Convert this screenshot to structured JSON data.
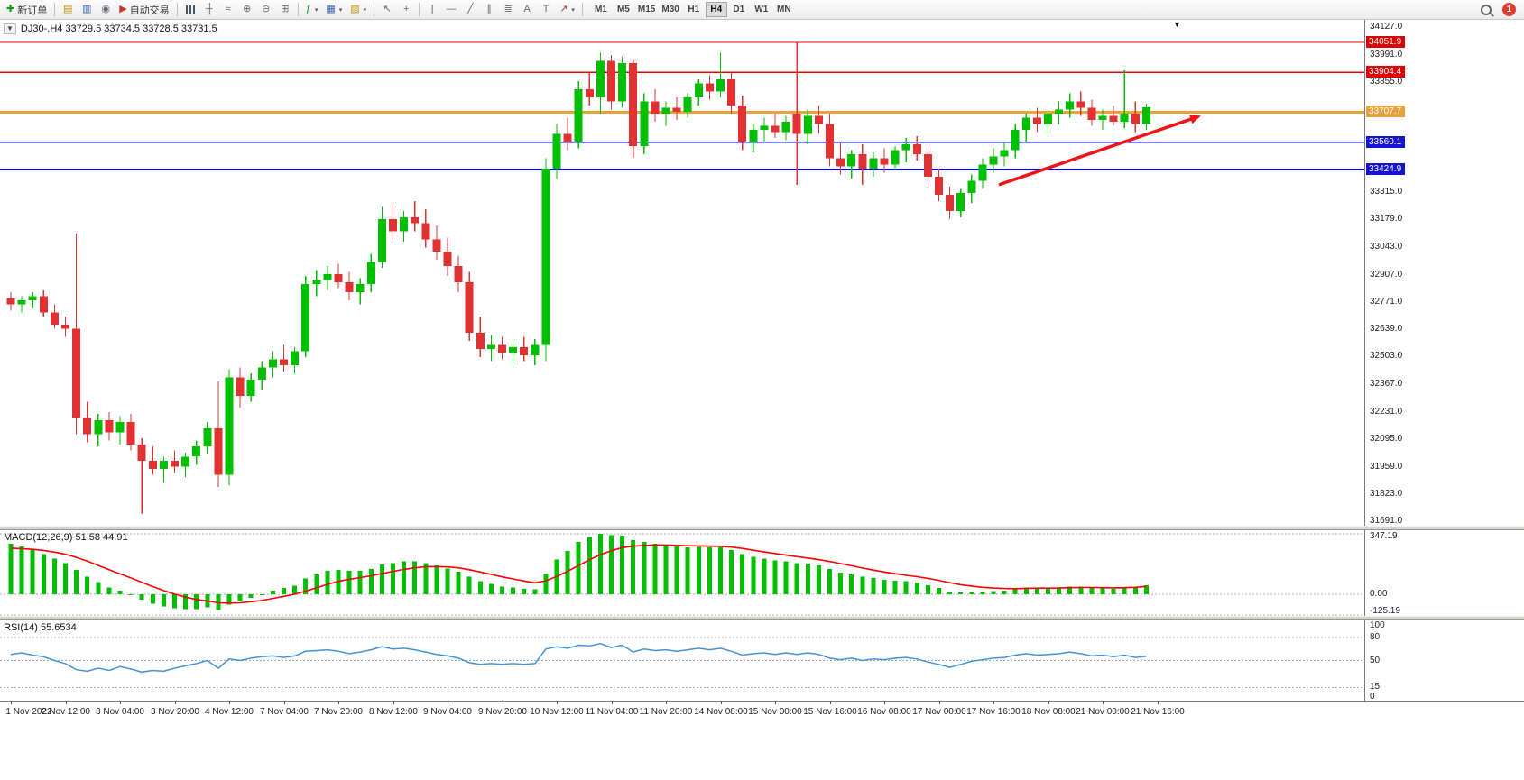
{
  "toolbar": {
    "new_order_label": "新订单",
    "autotrading_label": "自动交易",
    "timeframes": [
      "M1",
      "M5",
      "M15",
      "M30",
      "H1",
      "H4",
      "D1",
      "W1",
      "MN"
    ],
    "active_timeframe": "H4",
    "notification_count": "1"
  },
  "chart_data": {
    "type": "candlestick",
    "symbol": "DJ30-",
    "timeframe": "H4",
    "title_display": "DJ30-,H4 33729.5 33734.5 33728.5 33731.5",
    "current_bar": {
      "open": 33729.5,
      "high": 33734.5,
      "low": 33728.5,
      "close": 33731.5
    },
    "colors": {
      "bull": "#00BE00",
      "bear": "#E03232"
    },
    "price_axis": {
      "visible_top": 34163,
      "visible_bottom": 31669,
      "ticks": [
        34127.0,
        33991.0,
        33855.0,
        33719.0,
        33583.0,
        33447.0,
        33315.0,
        33179.0,
        33043.0,
        32907.0,
        32771.0,
        32639.0,
        32503.0,
        32367.0,
        32231.0,
        32095.0,
        31959.0,
        31823.0,
        31691.0
      ]
    },
    "horizontal_lines": [
      {
        "price": 34051.9,
        "color": "#EE0000",
        "width": 1.4,
        "tag_bg": "#DE0000"
      },
      {
        "price": 33904.4,
        "color": "#EE0000",
        "width": 1.4,
        "tag_bg": "#DE0000"
      },
      {
        "price": 33707.7,
        "color": "#E8A23C",
        "width": 3,
        "tag_bg": "#E8A23C"
      },
      {
        "price": 33560.1,
        "color": "#0000EE",
        "width": 1.6,
        "tag_bg": "#1414D2"
      },
      {
        "price": 33424.9,
        "color": "#0000EE",
        "width": 1.6,
        "tag_bg": "#1414D2"
      }
    ],
    "annotations": [
      {
        "type": "trend-arrow",
        "from_index": 90.5,
        "from_price": 33350,
        "to_index": 109,
        "to_price": 33690,
        "color": "#F01414",
        "width": 3.5
      }
    ],
    "candles": [
      [
        32790,
        32820,
        32730,
        32760
      ],
      [
        32760,
        32800,
        32720,
        32780
      ],
      [
        32780,
        32820,
        32740,
        32800
      ],
      [
        32800,
        32830,
        32700,
        32720
      ],
      [
        32720,
        32760,
        32640,
        32660
      ],
      [
        32660,
        32700,
        32600,
        32640
      ],
      [
        32640,
        33110,
        32120,
        32200
      ],
      [
        32200,
        32280,
        32080,
        32120
      ],
      [
        32120,
        32220,
        32060,
        32190
      ],
      [
        32190,
        32230,
        32090,
        32130
      ],
      [
        32130,
        32210,
        32070,
        32180
      ],
      [
        32180,
        32220,
        32040,
        32070
      ],
      [
        32070,
        32100,
        31730,
        31990
      ],
      [
        31990,
        32060,
        31920,
        31950
      ],
      [
        31950,
        32010,
        31880,
        31990
      ],
      [
        31990,
        32040,
        31930,
        31960
      ],
      [
        31960,
        32030,
        31910,
        32010
      ],
      [
        32010,
        32090,
        31970,
        32060
      ],
      [
        32060,
        32180,
        32020,
        32150
      ],
      [
        32150,
        32380,
        31860,
        31920
      ],
      [
        31920,
        32440,
        31870,
        32400
      ],
      [
        32400,
        32450,
        32250,
        32310
      ],
      [
        32310,
        32420,
        32280,
        32390
      ],
      [
        32390,
        32480,
        32340,
        32450
      ],
      [
        32450,
        32530,
        32400,
        32490
      ],
      [
        32490,
        32560,
        32430,
        32460
      ],
      [
        32460,
        32550,
        32420,
        32530
      ],
      [
        32530,
        32900,
        32500,
        32860
      ],
      [
        32860,
        32930,
        32800,
        32880
      ],
      [
        32880,
        32950,
        32830,
        32910
      ],
      [
        32910,
        32960,
        32840,
        32870
      ],
      [
        32870,
        32920,
        32780,
        32820
      ],
      [
        32820,
        32890,
        32760,
        32860
      ],
      [
        32860,
        33010,
        32820,
        32970
      ],
      [
        32970,
        33240,
        32940,
        33180
      ],
      [
        33180,
        33260,
        33080,
        33120
      ],
      [
        33120,
        33220,
        33070,
        33190
      ],
      [
        33190,
        33270,
        33120,
        33160
      ],
      [
        33160,
        33230,
        33040,
        33080
      ],
      [
        33080,
        33150,
        32980,
        33020
      ],
      [
        33020,
        33090,
        32900,
        32950
      ],
      [
        32950,
        33000,
        32820,
        32870
      ],
      [
        32870,
        32920,
        32580,
        32620
      ],
      [
        32620,
        32700,
        32500,
        32540
      ],
      [
        32540,
        32610,
        32480,
        32560
      ],
      [
        32560,
        32600,
        32490,
        32520
      ],
      [
        32520,
        32580,
        32470,
        32550
      ],
      [
        32550,
        32600,
        32480,
        32510
      ],
      [
        32510,
        32590,
        32460,
        32560
      ],
      [
        32560,
        33480,
        32480,
        33430
      ],
      [
        33430,
        33650,
        33380,
        33600
      ],
      [
        33600,
        33680,
        33520,
        33560
      ],
      [
        33560,
        33860,
        33530,
        33820
      ],
      [
        33820,
        33900,
        33740,
        33780
      ],
      [
        33780,
        34000,
        33700,
        33960
      ],
      [
        33960,
        33990,
        33720,
        33760
      ],
      [
        33760,
        33980,
        33730,
        33950
      ],
      [
        33950,
        33970,
        33480,
        33540
      ],
      [
        33540,
        33800,
        33500,
        33760
      ],
      [
        33760,
        33820,
        33660,
        33700
      ],
      [
        33700,
        33760,
        33640,
        33730
      ],
      [
        33730,
        33780,
        33670,
        33710
      ],
      [
        33710,
        33800,
        33680,
        33780
      ],
      [
        33780,
        33870,
        33740,
        33850
      ],
      [
        33850,
        33890,
        33770,
        33810
      ],
      [
        33810,
        34000,
        33780,
        33870
      ],
      [
        33870,
        33900,
        33700,
        33740
      ],
      [
        33740,
        33790,
        33520,
        33560
      ],
      [
        33560,
        33650,
        33510,
        33620
      ],
      [
        33620,
        33680,
        33560,
        33640
      ],
      [
        33640,
        33700,
        33580,
        33610
      ],
      [
        33610,
        33690,
        33570,
        33660
      ],
      [
        33700,
        34050,
        33350,
        33600
      ],
      [
        33600,
        33720,
        33550,
        33690
      ],
      [
        33690,
        33740,
        33600,
        33650
      ],
      [
        33650,
        33700,
        33440,
        33480
      ],
      [
        33480,
        33560,
        33400,
        33440
      ],
      [
        33440,
        33520,
        33380,
        33500
      ],
      [
        33500,
        33550,
        33350,
        33430
      ],
      [
        33430,
        33510,
        33390,
        33480
      ],
      [
        33480,
        33530,
        33410,
        33450
      ],
      [
        33450,
        33540,
        33420,
        33520
      ],
      [
        33520,
        33580,
        33460,
        33550
      ],
      [
        33550,
        33590,
        33470,
        33500
      ],
      [
        33500,
        33540,
        33350,
        33390
      ],
      [
        33390,
        33430,
        33270,
        33300
      ],
      [
        33300,
        33340,
        33180,
        33220
      ],
      [
        33220,
        33330,
        33190,
        33310
      ],
      [
        33310,
        33400,
        33260,
        33370
      ],
      [
        33370,
        33480,
        33330,
        33450
      ],
      [
        33450,
        33530,
        33410,
        33490
      ],
      [
        33490,
        33560,
        33440,
        33520
      ],
      [
        33520,
        33650,
        33480,
        33620
      ],
      [
        33620,
        33700,
        33560,
        33680
      ],
      [
        33680,
        33730,
        33610,
        33650
      ],
      [
        33650,
        33720,
        33600,
        33700
      ],
      [
        33700,
        33760,
        33650,
        33720
      ],
      [
        33720,
        33800,
        33680,
        33760
      ],
      [
        33760,
        33810,
        33690,
        33730
      ],
      [
        33730,
        33770,
        33640,
        33670
      ],
      [
        33670,
        33720,
        33620,
        33690
      ],
      [
        33690,
        33740,
        33640,
        33660
      ],
      [
        33660,
        33915,
        33630,
        33700
      ],
      [
        33700,
        33760,
        33610,
        33650
      ],
      [
        33650,
        33750,
        33620,
        33731.5
      ]
    ]
  },
  "macd": {
    "label_display": "MACD(12,26,9) 51.58 44.91",
    "name": "MACD",
    "params": "12,26,9",
    "main_value": 51.58,
    "signal_value": 44.91,
    "axis_ticks": [
      347.19,
      0,
      -125.19
    ],
    "histogram_color": "#00BE00",
    "signal_color": "#FF0000",
    "histogram": [
      290,
      275,
      255,
      230,
      205,
      180,
      140,
      100,
      70,
      40,
      20,
      0,
      -30,
      -55,
      -70,
      -80,
      -85,
      -85,
      -75,
      -90,
      -60,
      -40,
      -20,
      0,
      20,
      35,
      50,
      90,
      115,
      135,
      140,
      135,
      135,
      145,
      170,
      180,
      190,
      190,
      180,
      165,
      148,
      130,
      100,
      75,
      60,
      45,
      38,
      30,
      28,
      120,
      200,
      250,
      300,
      330,
      347,
      340,
      338,
      310,
      300,
      290,
      285,
      275,
      270,
      272,
      270,
      270,
      255,
      230,
      215,
      205,
      195,
      190,
      180,
      175,
      165,
      145,
      125,
      115,
      100,
      92,
      82,
      78,
      75,
      68,
      52,
      35,
      15,
      10,
      12,
      15,
      18,
      22,
      30,
      38,
      38,
      38,
      40,
      45,
      45,
      38,
      35,
      32,
      38,
      42,
      51.58
    ],
    "signal": [
      265,
      262,
      258,
      252,
      242,
      230,
      212,
      190,
      166,
      141,
      117,
      94,
      69,
      44,
      21,
      1,
      -16,
      -30,
      -39,
      -49,
      -51,
      -49,
      -43,
      -35,
      -24,
      -12,
      0,
      18,
      37,
      57,
      74,
      86,
      96,
      106,
      119,
      131,
      143,
      152,
      158,
      159,
      157,
      152,
      141,
      128,
      114,
      100,
      88,
      76,
      66,
      77,
      102,
      132,
      165,
      198,
      228,
      250,
      268,
      276,
      281,
      283,
      283,
      281,
      279,
      278,
      276,
      275,
      271,
      263,
      253,
      243,
      234,
      225,
      216,
      208,
      199,
      188,
      176,
      164,
      151,
      139,
      128,
      118,
      109,
      101,
      91,
      80,
      67,
      55,
      47,
      40,
      36,
      33,
      32,
      34,
      35,
      35,
      36,
      38,
      39,
      39,
      38,
      37,
      38,
      40,
      44.91
    ]
  },
  "rsi": {
    "label_display": "RSI(14) 55.6534",
    "name": "RSI",
    "period": 14,
    "value": 55.6534,
    "line_color": "#4492DB",
    "levels": [
      80,
      50,
      15
    ],
    "axis_ticks": [
      100,
      80,
      50,
      15,
      0
    ],
    "series": [
      58,
      60,
      57,
      55,
      50,
      46,
      38,
      36,
      40,
      37,
      42,
      39,
      35,
      37,
      36,
      40,
      43,
      46,
      50,
      40,
      52,
      50,
      53,
      55,
      56,
      54,
      56,
      62,
      63,
      64,
      62,
      59,
      61,
      64,
      68,
      65,
      66,
      64,
      61,
      58,
      56,
      53,
      47,
      45,
      46,
      45,
      46,
      45,
      46,
      65,
      68,
      66,
      70,
      69,
      72,
      67,
      70,
      61,
      65,
      63,
      64,
      62,
      64,
      66,
      64,
      66,
      62,
      57,
      59,
      60,
      58,
      60,
      58,
      60,
      58,
      53,
      51,
      53,
      50,
      52,
      51,
      53,
      54,
      52,
      48,
      45,
      41,
      45,
      49,
      51,
      53,
      54,
      57,
      59,
      57,
      58,
      59,
      61,
      59,
      56,
      57,
      55,
      57,
      54,
      55.65
    ]
  },
  "time_axis": {
    "labels": [
      "1 Nov 2022",
      "2 Nov 12:00",
      "3 Nov 04:00",
      "3 Nov 20:00",
      "4 Nov 12:00",
      "7 Nov 04:00",
      "7 Nov 20:00",
      "8 Nov 12:00",
      "9 Nov 04:00",
      "9 Nov 20:00",
      "10 Nov 12:00",
      "11 Nov 04:00",
      "11 Nov 20:00",
      "14 Nov 08:00",
      "15 Nov 00:00",
      "15 Nov 16:00",
      "16 Nov 08:00",
      "17 Nov 00:00",
      "17 Nov 16:00",
      "18 Nov 08:00",
      "21 Nov 00:00",
      "21 Nov 16:00"
    ]
  }
}
